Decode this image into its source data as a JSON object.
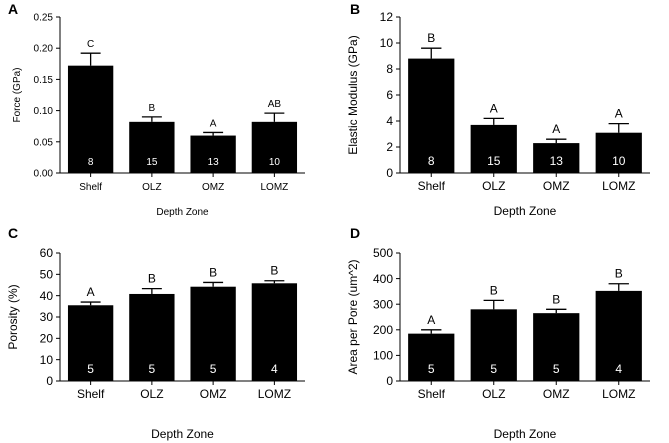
{
  "chart_data": [
    {
      "panel": "A",
      "type": "bar",
      "title": "",
      "xlabel": "Depth Zone",
      "ylabel": "Force (GPa)",
      "categories": [
        "Shelf",
        "OLZ",
        "OMZ",
        "LOMZ"
      ],
      "values": [
        0.172,
        0.082,
        0.06,
        0.082
      ],
      "errors": [
        0.02,
        0.008,
        0.005,
        0.014
      ],
      "letters": [
        "C",
        "B",
        "A",
        "AB"
      ],
      "n": [
        "8",
        "15",
        "13",
        "10"
      ],
      "ylim": [
        0,
        0.25
      ],
      "yticks": [
        "0.00",
        "0.05",
        "0.10",
        "0.15",
        "0.20",
        "0.25"
      ],
      "grid": false
    },
    {
      "panel": "B",
      "type": "bar",
      "title": "",
      "xlabel": "Depth Zone",
      "ylabel": "Elastic Modulus (GPa)",
      "categories": [
        "Shelf",
        "OLZ",
        "OMZ",
        "LOMZ"
      ],
      "values": [
        8.8,
        3.7,
        2.3,
        3.1
      ],
      "errors": [
        0.8,
        0.5,
        0.3,
        0.7
      ],
      "letters": [
        "B",
        "A",
        "A",
        "A"
      ],
      "n": [
        "8",
        "15",
        "13",
        "10"
      ],
      "ylim": [
        0,
        12
      ],
      "yticks": [
        "0",
        "2",
        "4",
        "6",
        "8",
        "10",
        "12"
      ],
      "grid": false
    },
    {
      "panel": "C",
      "type": "bar",
      "title": "",
      "xlabel": "Depth Zone",
      "ylabel": "Porosity (%)",
      "categories": [
        "Shelf",
        "OLZ",
        "OMZ",
        "LOMZ"
      ],
      "values": [
        35.5,
        40.8,
        44.2,
        45.8
      ],
      "errors": [
        1.5,
        2.5,
        2.0,
        1.2
      ],
      "letters": [
        "A",
        "B",
        "B",
        "B"
      ],
      "n": [
        "5",
        "5",
        "5",
        "4"
      ],
      "ylim": [
        0,
        60
      ],
      "yticks": [
        "0",
        "10",
        "20",
        "30",
        "40",
        "50",
        "60"
      ],
      "grid": false
    },
    {
      "panel": "D",
      "type": "bar",
      "title": "",
      "xlabel": "Depth Zone",
      "ylabel": "Area per Pore (um^2)",
      "categories": [
        "Shelf",
        "OLZ",
        "OMZ",
        "LOMZ"
      ],
      "values": [
        185,
        280,
        265,
        352
      ],
      "errors": [
        15,
        35,
        15,
        28
      ],
      "letters": [
        "A",
        "B",
        "B",
        "B"
      ],
      "n": [
        "5",
        "5",
        "5",
        "4"
      ],
      "ylim": [
        0,
        500
      ],
      "yticks": [
        "0",
        "100",
        "200",
        "300",
        "400",
        "500"
      ],
      "grid": false
    }
  ]
}
